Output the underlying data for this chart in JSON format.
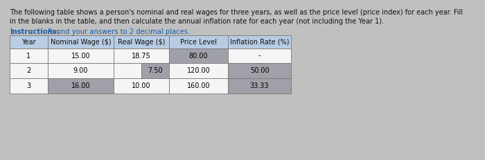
{
  "title_line1": "The following table shows a person's nominal and real wages for three years, as well as the price level (price index) for each year. Fill",
  "title_line2": "in the blanks in the table, and then calculate the annual inflation rate for each year (not including the Year 1).",
  "instructions_bold": "Instructions:",
  "instructions_rest": " Round your answers to 2 decimal places.",
  "headers": [
    "Year",
    "Nominal Wage ($)",
    "Real Wage ($)",
    "Price Level",
    "Inflation Rate (%)"
  ],
  "rows": [
    [
      "1",
      "15.00",
      "18.75",
      "80.00",
      "-"
    ],
    [
      "2",
      "9.00",
      "",
      "120.00",
      "50.00"
    ],
    [
      "3",
      "",
      "10.00",
      "160.00",
      "33.33"
    ]
  ],
  "real_wage_row2_val": "7.50",
  "nominal_wage_row3_val": "16.00",
  "header_bg": "#b8cce4",
  "cell_white": "#f5f5f5",
  "cell_gray": "#a0a0a8",
  "cell_gray_dark": "#9898a0",
  "border_color": "#888888",
  "bg_color": "#c8c8c8",
  "text_color": "#111111",
  "instructions_color": "#1a5fa8",
  "fig_bg": "#c0c0c0"
}
